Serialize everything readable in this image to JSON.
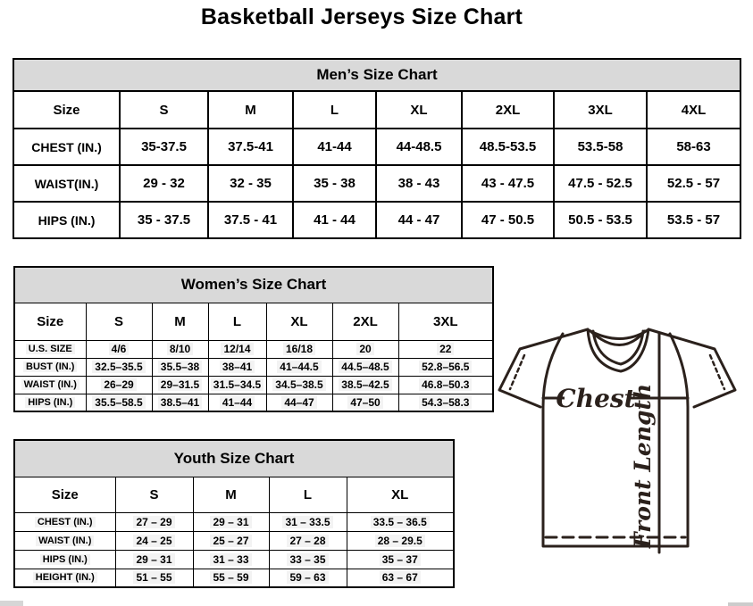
{
  "page_title": "Basketball Jerseys Size Chart",
  "colors": {
    "section_header_bg": "#d9d9d9",
    "table_border": "#000000",
    "jersey_line": "#2b211c"
  },
  "tables": {
    "men": {
      "title": "Men’s Size Chart",
      "columns": [
        "Size",
        "S",
        "M",
        "L",
        "XL",
        "2XL",
        "3XL",
        "4XL"
      ],
      "rows": [
        {
          "label": "CHEST (IN.)",
          "values": [
            "35-37.5",
            "37.5-41",
            "41-44",
            "44-48.5",
            "48.5-53.5",
            "53.5-58",
            "58-63"
          ]
        },
        {
          "label": "WAIST(IN.)",
          "values": [
            "29 - 32",
            "32 - 35",
            "35 - 38",
            "38 - 43",
            "43 - 47.5",
            "47.5 - 52.5",
            "52.5 - 57"
          ]
        },
        {
          "label": "HIPS (IN.)",
          "values": [
            "35 - 37.5",
            "37.5 - 41",
            "41 - 44",
            "44 - 47",
            "47 - 50.5",
            "50.5 - 53.5",
            "53.5 - 57"
          ]
        }
      ]
    },
    "women": {
      "title": "Women’s Size Chart",
      "columns": [
        "Size",
        "S",
        "M",
        "L",
        "XL",
        "2XL",
        "3XL"
      ],
      "rows": [
        {
          "label": "U.S. SIZE",
          "values": [
            "4/6",
            "8/10",
            "12/14",
            "16/18",
            "20",
            "22"
          ]
        },
        {
          "label": "BUST (IN.)",
          "values": [
            "32.5–35.5",
            "35.5–38",
            "38–41",
            "41–44.5",
            "44.5–48.5",
            "52.8–56.5"
          ]
        },
        {
          "label": "WAIST (IN.)",
          "values": [
            "26–29",
            "29–31.5",
            "31.5–34.5",
            "34.5–38.5",
            "38.5–42.5",
            "46.8–50.3"
          ]
        },
        {
          "label": "HIPS (IN.)",
          "values": [
            "35.5–58.5",
            "38.5–41",
            "41–44",
            "44–47",
            "47–50",
            "54.3–58.3"
          ]
        }
      ]
    },
    "youth": {
      "title": "Youth Size Chart",
      "columns": [
        "Size",
        "S",
        "M",
        "L",
        "XL"
      ],
      "rows": [
        {
          "label": "CHEST (IN.)",
          "values": [
            "27 – 29",
            "29 – 31",
            "31 – 33.5",
            "33.5 – 36.5"
          ]
        },
        {
          "label": "WAIST (IN.)",
          "values": [
            "24 – 25",
            "25 – 27",
            "27 – 28",
            "28 – 29.5"
          ]
        },
        {
          "label": "HIPS (IN.)",
          "values": [
            "29 – 31",
            "31 – 33",
            "33 – 35",
            "35 – 37"
          ]
        },
        {
          "label": "HEIGHT (IN.)",
          "values": [
            "51 – 55",
            "55 – 59",
            "59 – 63",
            "63 – 67"
          ]
        }
      ]
    }
  },
  "diagram": {
    "chest_label": "Chest",
    "front_length_label": "Front Length"
  }
}
